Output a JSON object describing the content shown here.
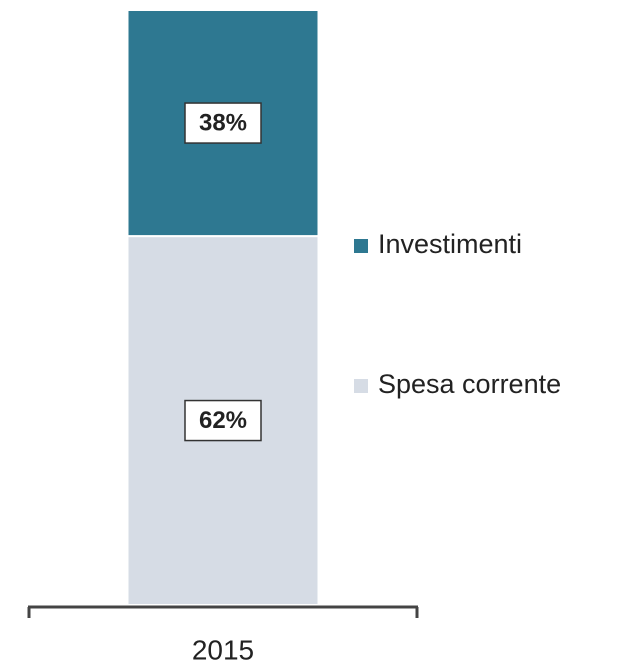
{
  "chart_data": {
    "type": "stacked_bar",
    "categories": [
      "2015"
    ],
    "series": [
      {
        "name": "Spesa corrente",
        "color": "#d6dce5",
        "values": [
          62
        ],
        "value_labels": [
          "62%"
        ]
      },
      {
        "name": "Investimenti",
        "color": "#2e7891",
        "values": [
          38
        ],
        "value_labels": [
          "38%"
        ]
      }
    ]
  }
}
